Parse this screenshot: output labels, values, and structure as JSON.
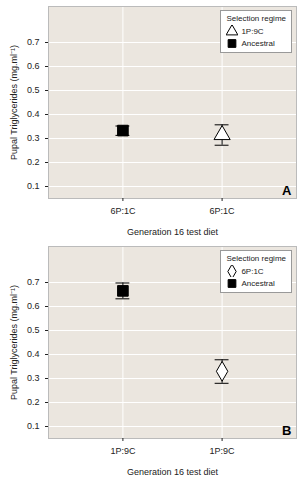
{
  "chart_data": [
    {
      "type": "scatter",
      "y_label": "Pupal Triglycerides (mg.ml⁻¹)",
      "x_label": "Generation 16 test diet",
      "legend_title": "Selection regime",
      "legend": "top-right",
      "annotation": "A",
      "grid": true,
      "categories": [
        "6P:1C",
        "6P:1C"
      ],
      "ylim": [
        0.05,
        0.85
      ],
      "yticks": [
        0.1,
        0.2,
        0.3,
        0.4,
        0.5,
        0.6,
        0.7
      ],
      "series": [
        {
          "name": "1P:9C",
          "color": "#ffffff",
          "marker": "triangle",
          "values": [
            null,
            0.315
          ],
          "lower": [
            null,
            0.272
          ],
          "upper": [
            null,
            0.357
          ]
        },
        {
          "name": "Ancestral",
          "color": "#000000",
          "marker": "square",
          "values": [
            0.333,
            null
          ],
          "lower": [
            0.313,
            null
          ],
          "upper": [
            0.352,
            null
          ]
        }
      ]
    },
    {
      "type": "scatter",
      "y_label": "Pupal Triglycerides (mg.ml⁻¹)",
      "x_label": "Generation 16 test diet",
      "legend_title": "Selection regime",
      "legend": "top-right",
      "annotation": "B",
      "grid": true,
      "categories": [
        "1P:9C",
        "1P:9C"
      ],
      "ylim": [
        0.05,
        0.85
      ],
      "yticks": [
        0.1,
        0.2,
        0.3,
        0.4,
        0.5,
        0.6,
        0.7
      ],
      "series": [
        {
          "name": "6P:1C",
          "color": "#ffffff",
          "marker": "diamond",
          "values": [
            null,
            0.33
          ],
          "lower": [
            null,
            0.28
          ],
          "upper": [
            null,
            0.378
          ]
        },
        {
          "name": "Ancestral",
          "color": "#000000",
          "marker": "square",
          "values": [
            0.665,
            null
          ],
          "lower": [
            0.632,
            null
          ],
          "upper": [
            0.698,
            null
          ]
        }
      ]
    }
  ]
}
